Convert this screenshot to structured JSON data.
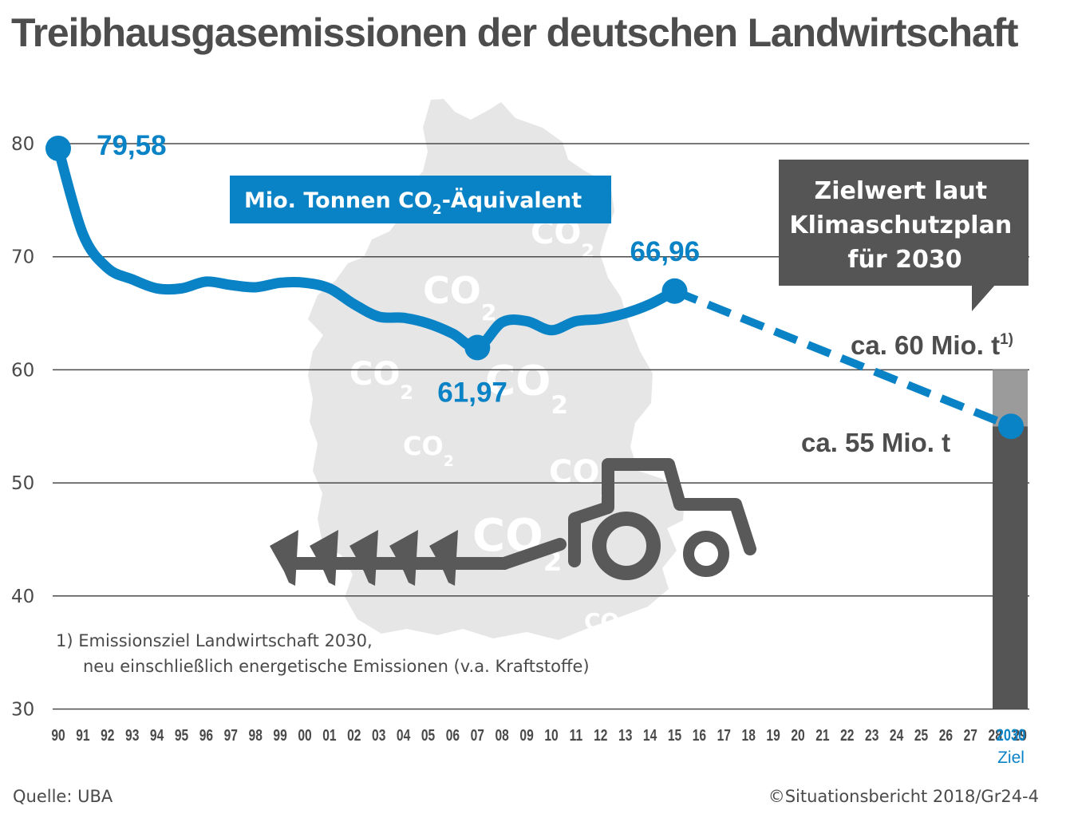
{
  "title": "Treibhausgasemissionen der deutschen Landwirtschaft",
  "source": "Quelle: UBA",
  "copyright": "©Situationsbericht 2018/Gr24-4",
  "colors": {
    "line": "#0a83c6",
    "text": "#4d4d4d",
    "target_bar": "#555555",
    "target_band": "#9b9b9b",
    "map": "#e6e6e6"
  },
  "icons": [
    "germany-map-silhouette",
    "tractor-with-plough-icon",
    "co2-watermark"
  ],
  "co2_watermark": {
    "main": "CO",
    "sub": "2"
  },
  "unit_label": {
    "main": "Mio. Tonnen CO",
    "sub": "2",
    "rest": "-Äquivalent"
  },
  "callout": {
    "lines": [
      "Zielwert laut",
      "Klimaschutzplan",
      "für 2030"
    ]
  },
  "target_labels": {
    "upper": {
      "text": "ca. 60 Mio. t",
      "sup": "1)"
    },
    "lower": "ca. 55 Mio. t"
  },
  "footnote": {
    "lines": [
      "1) Emissionsziel Landwirtschaft 2030,",
      "neu einschließlich energetische Emissionen (v.a. Kraftstoffe)"
    ]
  },
  "chart_data": {
    "type": "line",
    "ylim": [
      30,
      80
    ],
    "yticks": [
      30,
      40,
      50,
      60,
      70,
      80
    ],
    "grid": true,
    "x_tick_labels": [
      "90",
      "91",
      "92",
      "93",
      "94",
      "95",
      "96",
      "97",
      "98",
      "99",
      "00",
      "01",
      "02",
      "03",
      "04",
      "05",
      "06",
      "07",
      "08",
      "09",
      "10",
      "11",
      "12",
      "13",
      "14",
      "15",
      "16",
      "17",
      "18",
      "19",
      "20",
      "21",
      "22",
      "23",
      "24",
      "25",
      "26",
      "27",
      "28",
      "29",
      "2030"
    ],
    "target_tick_sublabel": "Ziel",
    "series": [
      {
        "values": [
          {
            "x": 1990,
            "y": 79.58
          },
          {
            "x": 1991,
            "y": 72.0
          },
          {
            "x": 1992,
            "y": 69.0
          },
          {
            "x": 1993,
            "y": 68.0
          },
          {
            "x": 1994,
            "y": 67.2
          },
          {
            "x": 1995,
            "y": 67.2
          },
          {
            "x": 1996,
            "y": 67.8
          },
          {
            "x": 1997,
            "y": 67.5
          },
          {
            "x": 1998,
            "y": 67.3
          },
          {
            "x": 1999,
            "y": 67.7
          },
          {
            "x": 2000,
            "y": 67.7
          },
          {
            "x": 2001,
            "y": 67.2
          },
          {
            "x": 2002,
            "y": 65.8
          },
          {
            "x": 2003,
            "y": 64.7
          },
          {
            "x": 2004,
            "y": 64.6
          },
          {
            "x": 2005,
            "y": 64.1
          },
          {
            "x": 2006,
            "y": 63.2
          },
          {
            "x": 2007,
            "y": 61.97
          },
          {
            "x": 2008,
            "y": 64.2
          },
          {
            "x": 2009,
            "y": 64.3
          },
          {
            "x": 2010,
            "y": 63.5
          },
          {
            "x": 2011,
            "y": 64.3
          },
          {
            "x": 2012,
            "y": 64.5
          },
          {
            "x": 2013,
            "y": 65.0
          },
          {
            "x": 2014,
            "y": 65.8
          },
          {
            "x": 2015,
            "y": 66.96
          }
        ],
        "projection": [
          {
            "x": 2015,
            "y": 66.96
          },
          {
            "x": 2030,
            "y": 55
          }
        ]
      }
    ],
    "data_labels": [
      {
        "x": 1990,
        "text": "79,58"
      },
      {
        "x": 2007,
        "text": "61,97"
      },
      {
        "x": 2015,
        "text": "66,96"
      }
    ],
    "target_range": {
      "x": 2030,
      "low": 55,
      "high": 60
    }
  }
}
